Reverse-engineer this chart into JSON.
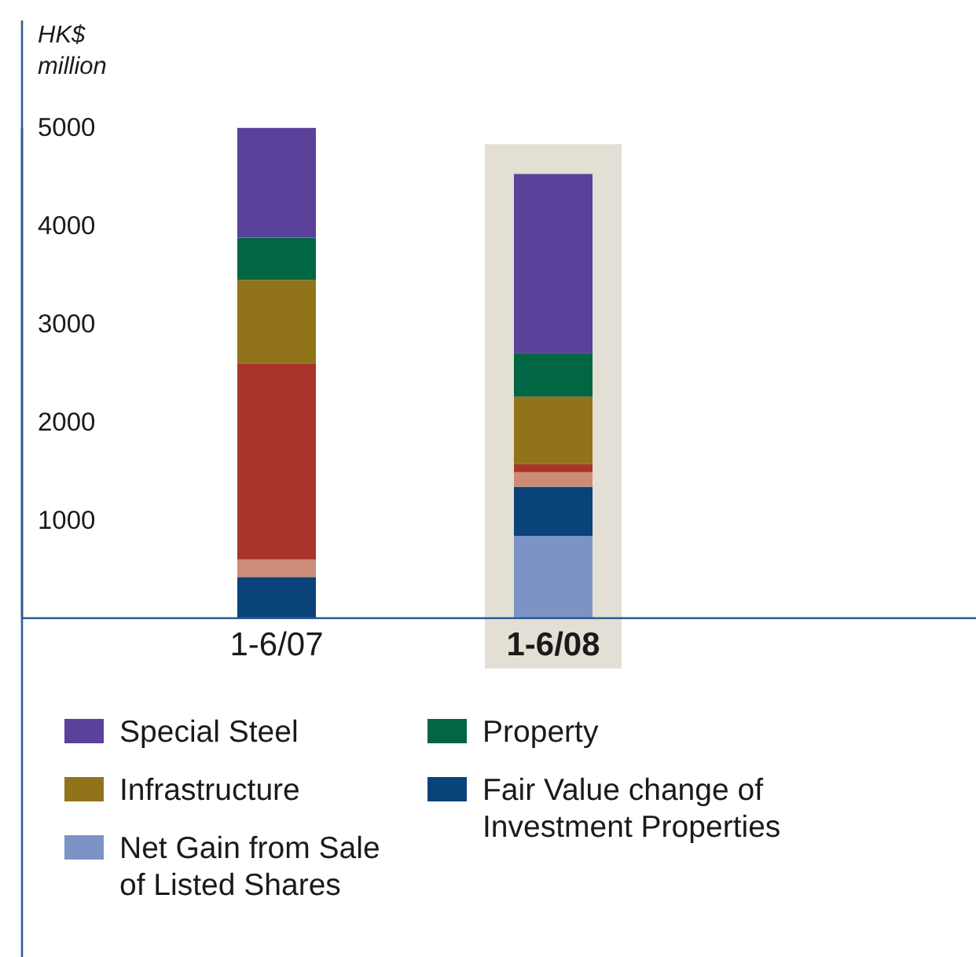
{
  "chart_data": {
    "type": "bar",
    "stacked": true,
    "ylabel": "HK$ million",
    "categories": [
      "1-6/07",
      "1-6/08"
    ],
    "series": [
      {
        "name": "Net Gain from Sale of Listed Shares",
        "color": "#7d93c6",
        "values": [
          null,
          840
        ]
      },
      {
        "name": "Fair Value change of Investment Properties",
        "color": "#0a427a",
        "values": [
          420,
          500
        ]
      },
      {
        "color": "#cc8c78",
        "values": [
          180,
          150
        ]
      },
      {
        "color": "#a8342a",
        "values": [
          2000,
          80
        ]
      },
      {
        "name": "Infrastructure",
        "color": "#91741a",
        "values": [
          850,
          690
        ]
      },
      {
        "name": "Property",
        "color": "#006643",
        "values": [
          430,
          440
        ]
      },
      {
        "name": "Special Steel",
        "color": "#5a4199",
        "values": [
          1120,
          1830
        ]
      }
    ],
    "ylim": [
      0,
      5000
    ],
    "yticks": [
      1000,
      2000,
      3000,
      4000,
      5000
    ],
    "bands": [
      {
        "axis": "x",
        "from": "1-6/08",
        "to": "1-6/08",
        "color": "#e4dfd4"
      }
    ],
    "legend": "bottom"
  }
}
